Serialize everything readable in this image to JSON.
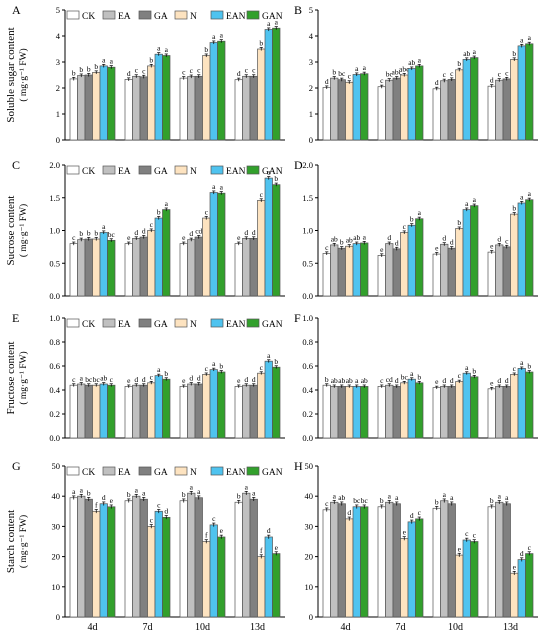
{
  "legend": [
    {
      "name": "CK",
      "color": "#ffffff"
    },
    {
      "name": "EA",
      "color": "#c0c0c0"
    },
    {
      "name": "GA",
      "color": "#808080"
    },
    {
      "name": "N",
      "color": "#fde3c0"
    },
    {
      "name": "EAN",
      "color": "#4fc3ef"
    },
    {
      "name": "GAN",
      "color": "#32a02c"
    }
  ],
  "categories": [
    "4d",
    "7d",
    "10d",
    "13d"
  ],
  "row_labels": [
    {
      "line1": "Soluble sugar content",
      "line2": "( mg·g⁻¹ FW)"
    },
    {
      "line1": "Sucrose content",
      "line2": "( mg·g⁻¹ FW)"
    },
    {
      "line1": "Fructose content",
      "line2": "( mg·g⁻¹ FW)"
    },
    {
      "line1": "Starch content",
      "line2": "( mg·g⁻¹ FW)"
    }
  ],
  "chart_data": [
    {
      "panel": "A",
      "type": "bar",
      "ylim": [
        0,
        5
      ],
      "yticks": [
        0,
        1,
        2,
        3,
        4,
        5
      ],
      "yticklabels": [
        "0",
        "1",
        "2",
        "3",
        "4",
        "5"
      ],
      "categories": [
        "4d",
        "7d",
        "10d",
        "13d"
      ],
      "series": [
        {
          "name": "CK",
          "values": [
            2.35,
            2.33,
            2.38,
            2.32
          ],
          "labels": [
            "b",
            "d",
            "c",
            "d"
          ]
        },
        {
          "name": "EA",
          "values": [
            2.48,
            2.45,
            2.44,
            2.45
          ],
          "labels": [
            "b",
            "c",
            "c",
            "c"
          ]
        },
        {
          "name": "GA",
          "values": [
            2.5,
            2.43,
            2.45,
            2.45
          ],
          "labels": [
            "b",
            "c",
            "c",
            "c"
          ]
        },
        {
          "name": "N",
          "values": [
            2.6,
            2.85,
            3.25,
            3.5
          ],
          "labels": [
            "b",
            "b",
            "b",
            "b"
          ]
        },
        {
          "name": "EAN",
          "values": [
            2.85,
            3.3,
            3.75,
            4.25
          ],
          "labels": [
            "a",
            "a",
            "a",
            "a"
          ]
        },
        {
          "name": "GAN",
          "values": [
            2.8,
            3.25,
            3.8,
            4.3
          ],
          "labels": [
            "a",
            "a",
            "a",
            "a"
          ]
        }
      ]
    },
    {
      "panel": "B",
      "type": "bar",
      "ylim": [
        0,
        5
      ],
      "yticks": [
        0,
        1,
        2,
        3,
        4,
        5
      ],
      "yticklabels": [
        "0",
        "1",
        "2",
        "3",
        "4",
        "5"
      ],
      "categories": [
        "4d",
        "7d",
        "10d",
        "13d"
      ],
      "series": [
        {
          "name": "CK",
          "values": [
            2.02,
            2.05,
            1.97,
            2.07
          ],
          "labels": [
            "d",
            "c",
            "d",
            "d"
          ]
        },
        {
          "name": "EA",
          "values": [
            2.38,
            2.3,
            2.28,
            2.3
          ],
          "labels": [
            "b",
            "bc",
            "c",
            "c"
          ]
        },
        {
          "name": "GA",
          "values": [
            2.32,
            2.38,
            2.33,
            2.35
          ],
          "labels": [
            "bc",
            "abc",
            "c",
            "c"
          ]
        },
        {
          "name": "N",
          "values": [
            2.22,
            2.5,
            2.7,
            3.1
          ],
          "labels": [
            "c",
            "abc",
            "b",
            "b"
          ]
        },
        {
          "name": "EAN",
          "values": [
            2.52,
            2.75,
            3.1,
            3.62
          ],
          "labels": [
            "a",
            "ab",
            "ab",
            "a"
          ]
        },
        {
          "name": "GAN",
          "values": [
            2.55,
            2.85,
            3.17,
            3.7
          ],
          "labels": [
            "a",
            "a",
            "a",
            "a"
          ]
        }
      ]
    },
    {
      "panel": "C",
      "type": "bar",
      "ylim": [
        0,
        2.0
      ],
      "yticks": [
        0,
        0.5,
        1.0,
        1.5,
        2.0
      ],
      "yticklabels": [
        "0.0",
        "0.5",
        "1.0",
        "1.5",
        "2.0"
      ],
      "categories": [
        "4d",
        "7d",
        "10d",
        "13d"
      ],
      "series": [
        {
          "name": "CK",
          "values": [
            0.8,
            0.8,
            0.8,
            0.8
          ],
          "labels": [
            "c",
            "e",
            "e",
            "e"
          ]
        },
        {
          "name": "EA",
          "values": [
            0.86,
            0.88,
            0.86,
            0.88
          ],
          "labels": [
            "b",
            "d",
            "d",
            "d"
          ]
        },
        {
          "name": "GA",
          "values": [
            0.87,
            0.9,
            0.9,
            0.88
          ],
          "labels": [
            "b",
            "d",
            "cd",
            "d"
          ]
        },
        {
          "name": "N",
          "values": [
            0.87,
            1.0,
            1.19,
            1.46
          ],
          "labels": [
            "b",
            "c",
            "c",
            "c"
          ]
        },
        {
          "name": "EAN",
          "values": [
            0.97,
            1.19,
            1.58,
            1.8
          ],
          "labels": [
            "a",
            "b",
            "a",
            "a"
          ]
        },
        {
          "name": "GAN",
          "values": [
            0.85,
            1.32,
            1.57,
            1.7
          ],
          "labels": [
            "bc",
            "a",
            "a",
            "b"
          ]
        }
      ]
    },
    {
      "panel": "D",
      "type": "bar",
      "ylim": [
        0,
        2.0
      ],
      "yticks": [
        0,
        0.5,
        1.0,
        1.5,
        2.0
      ],
      "yticklabels": [
        "0.0",
        "0.5",
        "1.0",
        "1.5",
        "2.0"
      ],
      "categories": [
        "4d",
        "7d",
        "10d",
        "13d"
      ],
      "series": [
        {
          "name": "CK",
          "values": [
            0.65,
            0.62,
            0.64,
            0.67
          ],
          "labels": [
            "c",
            "e",
            "e",
            "e"
          ]
        },
        {
          "name": "EA",
          "values": [
            0.78,
            0.8,
            0.79,
            0.78
          ],
          "labels": [
            "ab",
            "d",
            "d",
            "d"
          ]
        },
        {
          "name": "GA",
          "values": [
            0.73,
            0.72,
            0.73,
            0.75
          ],
          "labels": [
            "b",
            "d",
            "d",
            "c"
          ]
        },
        {
          "name": "N",
          "values": [
            0.76,
            0.97,
            1.03,
            1.25
          ],
          "labels": [
            "ab",
            "c",
            "b",
            "b"
          ]
        },
        {
          "name": "EAN",
          "values": [
            0.8,
            1.08,
            1.32,
            1.42
          ],
          "labels": [
            "ab",
            "b",
            "a",
            "a"
          ]
        },
        {
          "name": "GAN",
          "values": [
            0.81,
            1.18,
            1.38,
            1.47
          ],
          "labels": [
            "a",
            "a",
            "a",
            "a"
          ]
        }
      ]
    },
    {
      "panel": "E",
      "type": "bar",
      "ylim": [
        0,
        1.0
      ],
      "yticks": [
        0,
        0.2,
        0.4,
        0.6,
        0.8,
        1.0
      ],
      "yticklabels": [
        "0.0",
        "0.2",
        "0.4",
        "0.6",
        "0.8",
        "1.0"
      ],
      "categories": [
        "4d",
        "7d",
        "10d",
        "13d"
      ],
      "series": [
        {
          "name": "CK",
          "values": [
            0.44,
            0.43,
            0.43,
            0.43
          ],
          "labels": [
            "c",
            "e",
            "e",
            "e"
          ]
        },
        {
          "name": "EA",
          "values": [
            0.45,
            0.44,
            0.45,
            0.44
          ],
          "labels": [
            "a",
            "d",
            "d",
            "d"
          ]
        },
        {
          "name": "GA",
          "values": [
            0.44,
            0.44,
            0.45,
            0.44
          ],
          "labels": [
            "bc",
            "d",
            "d",
            "d"
          ]
        },
        {
          "name": "N",
          "values": [
            0.44,
            0.46,
            0.53,
            0.54
          ],
          "labels": [
            "bc",
            "c",
            "c",
            "c"
          ]
        },
        {
          "name": "EAN",
          "values": [
            0.45,
            0.52,
            0.57,
            0.64
          ],
          "labels": [
            "ab",
            "a",
            "a",
            "a"
          ]
        },
        {
          "name": "GAN",
          "values": [
            0.44,
            0.49,
            0.55,
            0.59
          ],
          "labels": [
            "c",
            "b",
            "b",
            "b"
          ]
        }
      ]
    },
    {
      "panel": "F",
      "type": "bar",
      "ylim": [
        0,
        1.0
      ],
      "yticks": [
        0,
        0.2,
        0.4,
        0.6,
        0.8,
        1.0
      ],
      "yticklabels": [
        "0.0",
        "0.2",
        "0.4",
        "0.6",
        "0.8",
        "1.0"
      ],
      "categories": [
        "4d",
        "7d",
        "10d",
        "13d"
      ],
      "series": [
        {
          "name": "CK",
          "values": [
            0.44,
            0.43,
            0.42,
            0.41
          ],
          "labels": [
            "b",
            "c",
            "e",
            "e"
          ]
        },
        {
          "name": "EA",
          "values": [
            0.43,
            0.44,
            0.43,
            0.43
          ],
          "labels": [
            "ab",
            "cd",
            "d",
            "d"
          ]
        },
        {
          "name": "GA",
          "values": [
            0.43,
            0.43,
            0.43,
            0.43
          ],
          "labels": [
            "ab",
            "d",
            "d",
            "d"
          ]
        },
        {
          "name": "N",
          "values": [
            0.43,
            0.46,
            0.47,
            0.53
          ],
          "labels": [
            "ab",
            "bc",
            "c",
            "c"
          ]
        },
        {
          "name": "EAN",
          "values": [
            0.43,
            0.49,
            0.54,
            0.58
          ],
          "labels": [
            "a",
            "a",
            "a",
            "a"
          ]
        },
        {
          "name": "GAN",
          "values": [
            0.43,
            0.46,
            0.51,
            0.55
          ],
          "labels": [
            "ab",
            "b",
            "b",
            "b"
          ]
        }
      ]
    },
    {
      "panel": "G",
      "type": "bar",
      "ylim": [
        0,
        50
      ],
      "yticks": [
        0,
        10,
        20,
        30,
        40,
        50
      ],
      "yticklabels": [
        "0",
        "10",
        "20",
        "30",
        "40",
        "50"
      ],
      "categories": [
        "4d",
        "7d",
        "10d",
        "13d"
      ],
      "series": [
        {
          "name": "CK",
          "values": [
            39.5,
            38.5,
            38.5,
            38.0
          ],
          "labels": [
            "a",
            "b",
            "b",
            "b"
          ]
        },
        {
          "name": "EA",
          "values": [
            40.0,
            40.0,
            41.0,
            41.0
          ],
          "labels": [
            "a",
            "a",
            "a",
            "a"
          ]
        },
        {
          "name": "GA",
          "values": [
            39.0,
            39.0,
            39.5,
            39.0
          ],
          "labels": [
            "b",
            "a",
            "a",
            "a"
          ]
        },
        {
          "name": "N",
          "values": [
            35.0,
            30.0,
            25.0,
            20.0
          ],
          "labels": [
            "f",
            "c",
            "f",
            "f"
          ]
        },
        {
          "name": "EAN",
          "values": [
            37.5,
            35.0,
            30.5,
            26.5
          ],
          "labels": [
            "d",
            "c",
            "c",
            "d"
          ]
        },
        {
          "name": "GAN",
          "values": [
            36.5,
            33.0,
            26.5,
            21.0
          ],
          "labels": [
            "e",
            "d",
            "e",
            "e"
          ]
        }
      ]
    },
    {
      "panel": "H",
      "type": "bar",
      "ylim": [
        0,
        50
      ],
      "yticks": [
        0,
        10,
        20,
        30,
        40,
        50
      ],
      "yticklabels": [
        "0",
        "10",
        "20",
        "30",
        "40",
        "50"
      ],
      "categories": [
        "4d",
        "7d",
        "10d",
        "13d"
      ],
      "series": [
        {
          "name": "CK",
          "values": [
            35.5,
            36.5,
            36.0,
            36.5
          ],
          "labels": [
            "c",
            "b",
            "b",
            "b"
          ]
        },
        {
          "name": "EA",
          "values": [
            38.0,
            38.0,
            38.5,
            38.0
          ],
          "labels": [
            "a",
            "a",
            "a",
            "a"
          ]
        },
        {
          "name": "GA",
          "values": [
            37.5,
            37.5,
            37.5,
            37.5
          ],
          "labels": [
            "ab",
            "a",
            "a",
            "a"
          ]
        },
        {
          "name": "N",
          "values": [
            32.5,
            26.0,
            20.5,
            14.5
          ],
          "labels": [
            "d",
            "e",
            "e",
            "e"
          ]
        },
        {
          "name": "EAN",
          "values": [
            36.5,
            31.5,
            25.5,
            19.0
          ],
          "labels": [
            "bc",
            "d",
            "c",
            "d"
          ]
        },
        {
          "name": "GAN",
          "values": [
            36.5,
            32.5,
            25.0,
            21.0
          ],
          "labels": [
            "bc",
            "c",
            "c",
            "c"
          ]
        }
      ]
    }
  ]
}
